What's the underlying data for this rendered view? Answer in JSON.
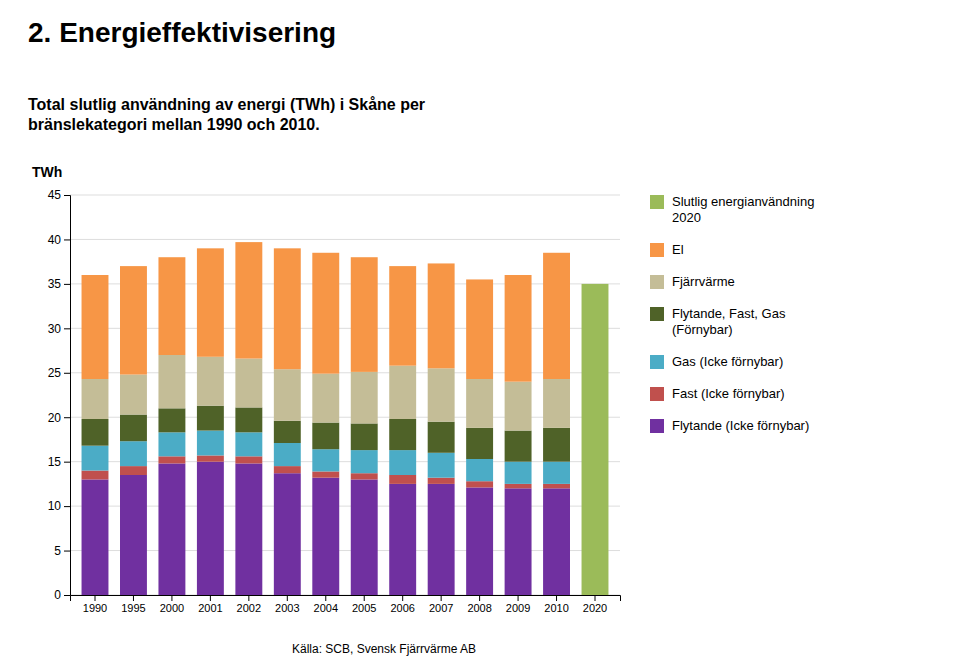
{
  "chart_data": {
    "type": "bar",
    "stacked": true,
    "title": "2. Energieffektivisering",
    "subtitle": "Total slutlig användning av energi (TWh) i Skåne per\nbränslekategori mellan 1990 och 2010.",
    "y_label": "TWh",
    "source": "Källa: SCB, Svensk Fjärrvärme AB",
    "categories": [
      "1990",
      "1995",
      "2000",
      "2001",
      "2002",
      "2003",
      "2004",
      "2005",
      "2006",
      "2007",
      "2008",
      "2009",
      "2010",
      "2020"
    ],
    "series": [
      {
        "name": "Flytande (Icke förnybar)",
        "color": "#7030A0",
        "values": [
          13.0,
          13.5,
          14.8,
          15.0,
          14.8,
          13.7,
          13.2,
          13.0,
          12.5,
          12.5,
          12.1,
          12.0,
          12.0,
          0.0
        ]
      },
      {
        "name": "Fast (Icke förnybar)",
        "color": "#C0504D",
        "values": [
          1.0,
          1.0,
          0.8,
          0.7,
          0.8,
          0.8,
          0.7,
          0.7,
          1.0,
          0.7,
          0.7,
          0.5,
          0.5,
          0.0
        ]
      },
      {
        "name": "Gas (Icke förnybar)",
        "color": "#4BACC6",
        "values": [
          2.8,
          2.8,
          2.7,
          2.8,
          2.7,
          2.6,
          2.5,
          2.6,
          2.8,
          2.8,
          2.5,
          2.5,
          2.5,
          0.0
        ]
      },
      {
        "name": "Flytande, Fast, Gas\n(Förnybar)",
        "color": "#4F6228",
        "values": [
          3.0,
          3.0,
          2.7,
          2.8,
          2.8,
          2.5,
          3.0,
          3.0,
          3.5,
          3.5,
          3.5,
          3.5,
          3.8,
          0.0
        ]
      },
      {
        "name": "Fjärrvärme",
        "color": "#C4BD97",
        "values": [
          4.5,
          4.5,
          6.0,
          5.5,
          5.5,
          5.8,
          5.5,
          5.8,
          6.0,
          6.0,
          5.5,
          5.5,
          5.5,
          0.0
        ]
      },
      {
        "name": "El",
        "color": "#F79646",
        "values": [
          11.7,
          12.2,
          11.0,
          12.2,
          13.1,
          13.6,
          13.6,
          12.9,
          11.2,
          11.8,
          11.2,
          12.0,
          14.2,
          0.0
        ]
      },
      {
        "name": "Slutlig energianvändning\n2020",
        "color": "#9BBB59",
        "values": [
          0.0,
          0.0,
          0.0,
          0.0,
          0.0,
          0.0,
          0.0,
          0.0,
          0.0,
          0.0,
          0.0,
          0.0,
          0.0,
          35.0
        ]
      }
    ],
    "ylim": [
      0,
      45
    ],
    "yticks": [
      0,
      5,
      10,
      15,
      20,
      25,
      30,
      35,
      40,
      45
    ],
    "grid": true,
    "legend": "right"
  }
}
